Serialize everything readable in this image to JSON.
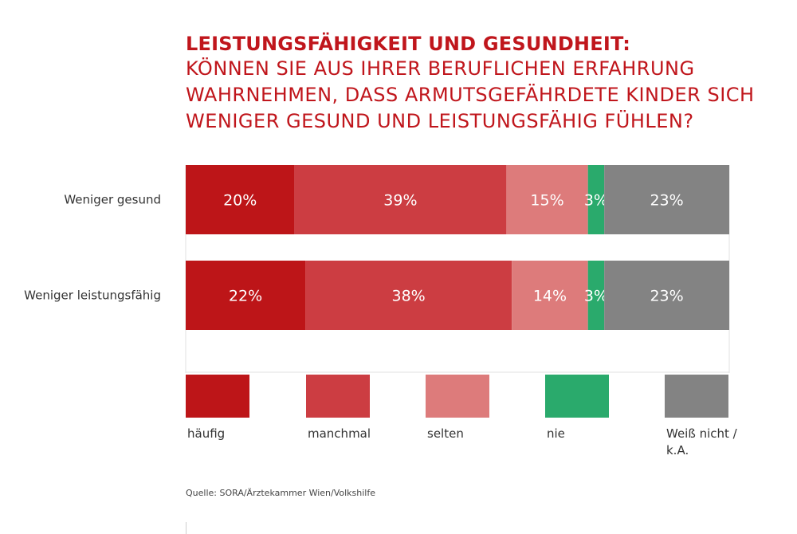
{
  "chart_data": {
    "type": "bar",
    "orientation": "horizontal",
    "stacked": true,
    "title": "LEISTUNGSFÄHIGKEIT UND GESUNDHEIT:",
    "subtitle": "KÖNNEN SIE AUS IHRER BERUFLICHEN ERFAHRUNG WAHRNEHMEN, DASS ARMUTSGEFÄHRDETE KINDER SICH WENIGER GESUND UND LEISTUNGSFÄHIG FÜHLEN?",
    "categories": [
      "Weniger gesund",
      "Weniger leistungsfähig"
    ],
    "series": [
      {
        "name": "häufig",
        "values": [
          20,
          22
        ],
        "color": "#bd1518"
      },
      {
        "name": "manchmal",
        "values": [
          39,
          38
        ],
        "color": "#cc3d42"
      },
      {
        "name": "selten",
        "values": [
          15,
          14
        ],
        "color": "#dd7b7b"
      },
      {
        "name": "nie",
        "values": [
          3,
          3
        ],
        "color": "#2aaa6c"
      },
      {
        "name": "Weiß nicht / k.A.",
        "values": [
          23,
          23
        ],
        "color": "#838383"
      }
    ],
    "value_suffix": "%",
    "xlim": [
      0,
      100
    ],
    "legend_position": "bottom",
    "grid": false
  },
  "source": "Quelle: SORA/Ärztekammer Wien/Volkshilfe"
}
